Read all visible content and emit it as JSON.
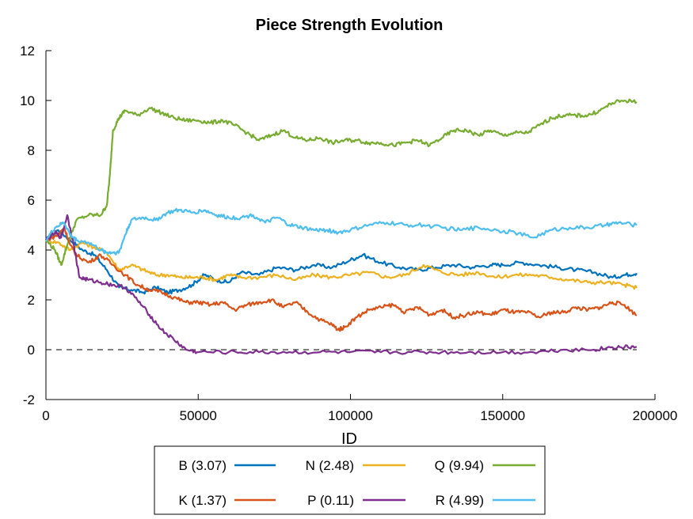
{
  "chart_data": {
    "type": "line",
    "title": "Piece Strength Evolution",
    "xlabel": "ID",
    "ylabel": "",
    "xlim": [
      0,
      200000
    ],
    "ylim": [
      -2,
      12
    ],
    "xticks": [
      0,
      50000,
      100000,
      150000,
      200000
    ],
    "xtick_labels": [
      "0",
      "50000",
      "100000",
      "150000",
      "200000"
    ],
    "yticks": [
      -2,
      0,
      2,
      4,
      6,
      8,
      10,
      12
    ],
    "ytick_labels": [
      "-2",
      "0",
      "2",
      "4",
      "6",
      "8",
      "10",
      "12"
    ],
    "grid": false,
    "reference_line": {
      "y": 0,
      "style": "dashed"
    },
    "legend_placement": "bottom-center, outside plot",
    "series": [
      {
        "name": "B (3.07)",
        "color": "#0072bd",
        "x": [
          0,
          4000,
          8000,
          12000,
          16000,
          20000,
          24000,
          28000,
          32000,
          36000,
          40000,
          44000,
          48000,
          52000,
          56000,
          60000,
          64000,
          70000,
          76000,
          82000,
          88000,
          94000,
          100000,
          104000,
          110000,
          116000,
          122000,
          128000,
          134000,
          140000,
          146000,
          150000,
          156000,
          162000,
          168000,
          174000,
          180000,
          186000,
          190000,
          194000
        ],
        "y": [
          4.4,
          4.8,
          4.4,
          4.0,
          3.8,
          3.2,
          2.5,
          2.4,
          2.3,
          2.5,
          2.3,
          2.4,
          2.6,
          3.0,
          2.8,
          2.7,
          3.1,
          3.0,
          3.3,
          3.2,
          3.4,
          3.3,
          3.6,
          3.8,
          3.5,
          3.3,
          3.2,
          3.3,
          3.4,
          3.3,
          3.4,
          3.4,
          3.5,
          3.4,
          3.3,
          3.2,
          3.1,
          2.9,
          3.0,
          3.07
        ]
      },
      {
        "name": "N (2.48)",
        "color": "#edb120",
        "x": [
          0,
          4000,
          8000,
          12000,
          16000,
          20000,
          24000,
          28000,
          32000,
          36000,
          40000,
          44000,
          48000,
          52000,
          56000,
          60000,
          64000,
          70000,
          76000,
          82000,
          88000,
          94000,
          100000,
          106000,
          112000,
          118000,
          124000,
          130000,
          136000,
          142000,
          148000,
          154000,
          160000,
          166000,
          172000,
          178000,
          184000,
          190000,
          194000
        ],
        "y": [
          4.4,
          4.3,
          4.0,
          4.3,
          4.1,
          3.9,
          3.2,
          3.4,
          3.2,
          3.0,
          3.0,
          2.9,
          2.9,
          2.9,
          2.8,
          3.0,
          2.9,
          2.9,
          3.0,
          2.8,
          3.0,
          2.9,
          3.0,
          3.1,
          2.9,
          3.0,
          3.4,
          3.1,
          3.0,
          3.1,
          2.9,
          3.0,
          3.0,
          2.9,
          2.8,
          2.7,
          2.7,
          2.6,
          2.48
        ]
      },
      {
        "name": "Q (9.94)",
        "color": "#77ac30",
        "x": [
          0,
          3000,
          5000,
          7000,
          10000,
          14000,
          18000,
          20000,
          21000,
          22000,
          24000,
          26000,
          30000,
          34000,
          38000,
          42000,
          46000,
          50000,
          54000,
          58000,
          62000,
          66000,
          70000,
          74000,
          78000,
          82000,
          86000,
          90000,
          94000,
          98000,
          102000,
          106000,
          110000,
          114000,
          118000,
          122000,
          126000,
          130000,
          134000,
          138000,
          142000,
          146000,
          150000,
          154000,
          158000,
          162000,
          166000,
          170000,
          174000,
          178000,
          182000,
          186000,
          190000,
          194000
        ],
        "y": [
          4.4,
          4.0,
          3.4,
          4.2,
          5.2,
          5.4,
          5.4,
          5.8,
          7.0,
          8.8,
          9.3,
          9.6,
          9.4,
          9.7,
          9.5,
          9.3,
          9.2,
          9.2,
          9.1,
          9.2,
          9.0,
          8.7,
          8.4,
          8.6,
          8.8,
          8.5,
          8.4,
          8.5,
          8.3,
          8.4,
          8.4,
          8.3,
          8.3,
          8.2,
          8.3,
          8.4,
          8.2,
          8.5,
          8.8,
          8.8,
          8.6,
          8.8,
          8.6,
          8.7,
          8.7,
          9.0,
          9.3,
          9.4,
          9.4,
          9.4,
          9.6,
          9.9,
          10.0,
          9.94
        ]
      },
      {
        "name": "K (1.37)",
        "color": "#d95319",
        "x": [
          0,
          4000,
          6000,
          8000,
          10000,
          14000,
          18000,
          22000,
          26000,
          30000,
          34000,
          38000,
          42000,
          46000,
          50000,
          54000,
          58000,
          62000,
          66000,
          70000,
          74000,
          78000,
          82000,
          86000,
          90000,
          94000,
          96000,
          98000,
          102000,
          106000,
          110000,
          114000,
          118000,
          122000,
          126000,
          130000,
          134000,
          138000,
          142000,
          146000,
          150000,
          154000,
          158000,
          162000,
          166000,
          170000,
          174000,
          178000,
          182000,
          186000,
          190000,
          194000
        ],
        "y": [
          4.4,
          4.6,
          4.9,
          4.2,
          3.8,
          3.5,
          3.8,
          3.4,
          3.0,
          2.6,
          2.4,
          2.3,
          2.1,
          1.9,
          1.9,
          1.8,
          1.9,
          1.6,
          1.8,
          1.9,
          2.0,
          1.7,
          1.9,
          1.5,
          1.2,
          1.0,
          0.8,
          0.9,
          1.3,
          1.6,
          1.7,
          1.8,
          1.5,
          1.7,
          1.4,
          1.6,
          1.3,
          1.4,
          1.5,
          1.4,
          1.6,
          1.5,
          1.5,
          1.3,
          1.5,
          1.5,
          1.7,
          1.6,
          1.7,
          1.9,
          1.8,
          1.37
        ]
      },
      {
        "name": "P (0.11)",
        "color": "#7e2f8e",
        "x": [
          0,
          3000,
          5000,
          7000,
          9000,
          11000,
          14000,
          18000,
          22000,
          26000,
          30000,
          34000,
          38000,
          42000,
          46000,
          50000,
          60000,
          70000,
          80000,
          90000,
          100000,
          110000,
          120000,
          130000,
          140000,
          150000,
          160000,
          170000,
          180000,
          186000,
          190000,
          194000
        ],
        "y": [
          4.4,
          4.7,
          4.5,
          5.4,
          4.3,
          2.9,
          2.8,
          2.7,
          2.6,
          2.5,
          2.0,
          1.4,
          0.8,
          0.4,
          0.0,
          -0.1,
          -0.1,
          -0.1,
          -0.1,
          -0.1,
          -0.1,
          -0.1,
          -0.1,
          -0.1,
          -0.1,
          -0.1,
          -0.1,
          0.0,
          0.0,
          0.1,
          0.1,
          0.11
        ]
      },
      {
        "name": "R (4.99)",
        "color": "#4dbeee",
        "x": [
          0,
          3000,
          6000,
          8000,
          10000,
          14000,
          18000,
          20000,
          22000,
          24000,
          26000,
          28000,
          32000,
          36000,
          40000,
          44000,
          48000,
          52000,
          56000,
          60000,
          64000,
          68000,
          72000,
          76000,
          80000,
          84000,
          88000,
          92000,
          96000,
          100000,
          106000,
          112000,
          118000,
          124000,
          130000,
          136000,
          142000,
          148000,
          154000,
          160000,
          166000,
          172000,
          178000,
          184000,
          188000,
          194000
        ],
        "y": [
          4.4,
          4.9,
          5.1,
          4.6,
          4.4,
          4.3,
          4.0,
          3.9,
          3.9,
          3.9,
          4.6,
          5.2,
          5.3,
          5.2,
          5.5,
          5.6,
          5.5,
          5.6,
          5.4,
          5.3,
          5.3,
          5.4,
          5.1,
          5.3,
          5.0,
          4.9,
          4.8,
          4.8,
          4.7,
          4.8,
          5.0,
          5.1,
          5.0,
          5.0,
          4.9,
          4.8,
          4.9,
          4.8,
          4.7,
          4.5,
          4.8,
          4.9,
          4.9,
          5.0,
          5.1,
          4.99
        ]
      }
    ]
  }
}
